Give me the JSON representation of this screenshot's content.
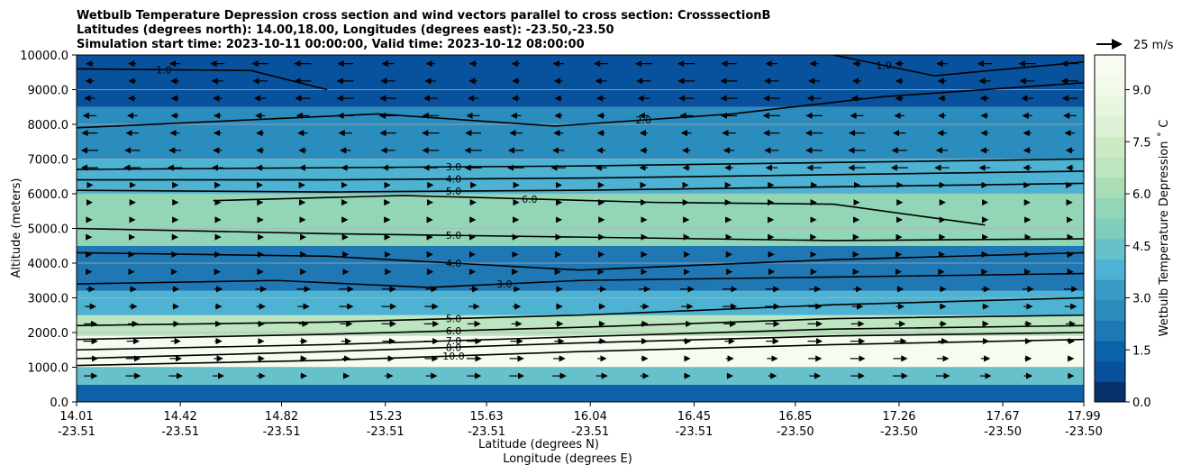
{
  "chart_data": {
    "type": "heatmap",
    "title_lines": [
      "Wetbulb Temperature Depression cross section and wind vectors parallel to cross section: CrosssectionB",
      "Latitudes (degrees north): 14.00,18.00, Longitudes (degrees east): -23.50,-23.50",
      "Simulation start time: 2023-10-11 00:00:00, Valid time: 2023-10-12 08:00:00"
    ],
    "ylabel": "Altitude (meters)",
    "xlabel_lines": [
      "Latitude (degrees N)",
      "Longitude (degrees E)"
    ],
    "ylim": [
      0,
      10000
    ],
    "yticks": [
      "0.0",
      "1000.0",
      "2000.0",
      "3000.0",
      "4000.0",
      "5000.0",
      "6000.0",
      "7000.0",
      "8000.0",
      "9000.0",
      "10000.0"
    ],
    "ytick_values": [
      0,
      1000,
      2000,
      3000,
      4000,
      5000,
      6000,
      7000,
      8000,
      9000,
      10000
    ],
    "xlim": [
      14.01,
      17.99
    ],
    "xtick_values": [
      14.01,
      14.42,
      14.82,
      15.23,
      15.63,
      16.04,
      16.45,
      16.85,
      17.26,
      17.67,
      17.99
    ],
    "xticks_lat": [
      "14.01",
      "14.42",
      "14.82",
      "15.23",
      "15.63",
      "16.04",
      "16.45",
      "16.85",
      "17.26",
      "17.67",
      "17.99"
    ],
    "xticks_lon": [
      "-23.51",
      "-23.51",
      "-23.51",
      "-23.51",
      "-23.51",
      "-23.51",
      "-23.51",
      "-23.50",
      "-23.50",
      "-23.50",
      "-23.50"
    ],
    "colorbar": {
      "label": "Wetbulb Temperature Depression ˚ C",
      "range": [
        0,
        10
      ],
      "ticks": [
        "0.0",
        "1.5",
        "3.0",
        "4.5",
        "6.0",
        "7.5",
        "9.0"
      ],
      "tick_values": [
        0,
        1.5,
        3.0,
        4.5,
        6.0,
        7.5,
        9.0
      ],
      "colors": [
        "#08306b",
        "#08519c",
        "#0b62a8",
        "#1f78b4",
        "#2b8cbe",
        "#3a9ac6",
        "#4eb3d3",
        "#67c1cb",
        "#7fcdbb",
        "#92d5b7",
        "#a8ddb5",
        "#bce5c0",
        "#ccebc5",
        "#dcf1d4",
        "#e8f6e0",
        "#f2faea",
        "#f7fcf0"
      ]
    },
    "wind_reference": {
      "label": "25 m/s",
      "speed": 25
    },
    "bands": [
      {
        "alt": [
          0,
          500
        ],
        "value": 1.5
      },
      {
        "alt": [
          500,
          1000
        ],
        "value": 4.5
      },
      {
        "alt": [
          1000,
          1900
        ],
        "value": 9.5
      },
      {
        "alt": [
          1900,
          2500
        ],
        "value": 6.5
      },
      {
        "alt": [
          2500,
          3200
        ],
        "value": 4.0
      },
      {
        "alt": [
          3200,
          4500
        ],
        "value": 2.0
      },
      {
        "alt": [
          4500,
          6000
        ],
        "value": 5.5
      },
      {
        "alt": [
          6000,
          7000
        ],
        "value": 4.0
      },
      {
        "alt": [
          7000,
          8500
        ],
        "value": 2.5
      },
      {
        "alt": [
          8500,
          10000
        ],
        "value": 1.0
      }
    ],
    "contours": [
      {
        "level": "10.0",
        "x": [
          14.01,
          15.0,
          16.0,
          17.0,
          17.99
        ],
        "alt": [
          1050,
          1200,
          1450,
          1650,
          1800
        ]
      },
      {
        "level": "8.0",
        "x": [
          14.01,
          15.0,
          16.0,
          17.0,
          17.99
        ],
        "alt": [
          1250,
          1450,
          1700,
          1900,
          2000
        ]
      },
      {
        "level": "7.0",
        "x": [
          14.01,
          15.0,
          16.0,
          17.0,
          17.99
        ],
        "alt": [
          1500,
          1650,
          1880,
          2100,
          2200
        ]
      },
      {
        "level": "6.0",
        "x": [
          14.01,
          15.0,
          16.0,
          17.0,
          17.99
        ],
        "alt": [
          1800,
          1950,
          2150,
          2400,
          2500
        ]
      },
      {
        "level": "5.0",
        "x": [
          14.01,
          15.0,
          16.0,
          17.0,
          17.99
        ],
        "alt": [
          2200,
          2300,
          2500,
          2800,
          3000
        ]
      },
      {
        "level": "3.0",
        "x": [
          14.01,
          14.8,
          15.4,
          16.0,
          17.0,
          17.99
        ],
        "alt": [
          3400,
          3500,
          3300,
          3500,
          3600,
          3700
        ]
      },
      {
        "level": "4.0",
        "x": [
          14.01,
          15.0,
          16.0,
          17.0,
          17.99
        ],
        "alt": [
          4300,
          4200,
          3800,
          4100,
          4300
        ]
      },
      {
        "level": "5.0",
        "x": [
          14.01,
          15.0,
          16.0,
          17.0,
          17.99
        ],
        "alt": [
          5000,
          4850,
          4750,
          4650,
          4700
        ]
      },
      {
        "level": "6.0",
        "x": [
          14.55,
          15.3,
          16.3,
          17.0,
          17.6
        ],
        "alt": [
          5800,
          5950,
          5750,
          5700,
          5100
        ]
      },
      {
        "level": "5.0",
        "x": [
          14.01,
          15.0,
          16.0,
          17.0,
          17.99
        ],
        "alt": [
          6100,
          6050,
          6100,
          6200,
          6300
        ]
      },
      {
        "level": "4.0",
        "x": [
          14.01,
          15.0,
          16.0,
          17.0,
          17.99
        ],
        "alt": [
          6400,
          6400,
          6450,
          6550,
          6650
        ]
      },
      {
        "level": "3.0",
        "x": [
          14.01,
          15.0,
          16.0,
          17.0,
          17.99
        ],
        "alt": [
          6700,
          6750,
          6800,
          6900,
          7000
        ]
      },
      {
        "level": "2.0",
        "x": [
          14.01,
          15.2,
          15.9,
          16.6,
          17.2,
          17.99
        ],
        "alt": [
          7900,
          8300,
          7950,
          8300,
          8800,
          9200
        ]
      },
      {
        "level": "1.0",
        "x": [
          14.01,
          14.7,
          15.0
        ],
        "alt": [
          9600,
          9550,
          9000
        ]
      },
      {
        "level": "1.0",
        "x": [
          17.0,
          17.4,
          17.99
        ],
        "alt": [
          10000,
          9400,
          9800
        ]
      }
    ],
    "wind_vectors": [
      {
        "alt": [
          500,
          3500
        ],
        "direction": "east",
        "strength": 0.6
      },
      {
        "alt": [
          3500,
          6500
        ],
        "direction": "east",
        "strength": 0.2
      },
      {
        "alt": [
          6500,
          10000
        ],
        "direction": "west",
        "strength": 0.7
      }
    ]
  }
}
